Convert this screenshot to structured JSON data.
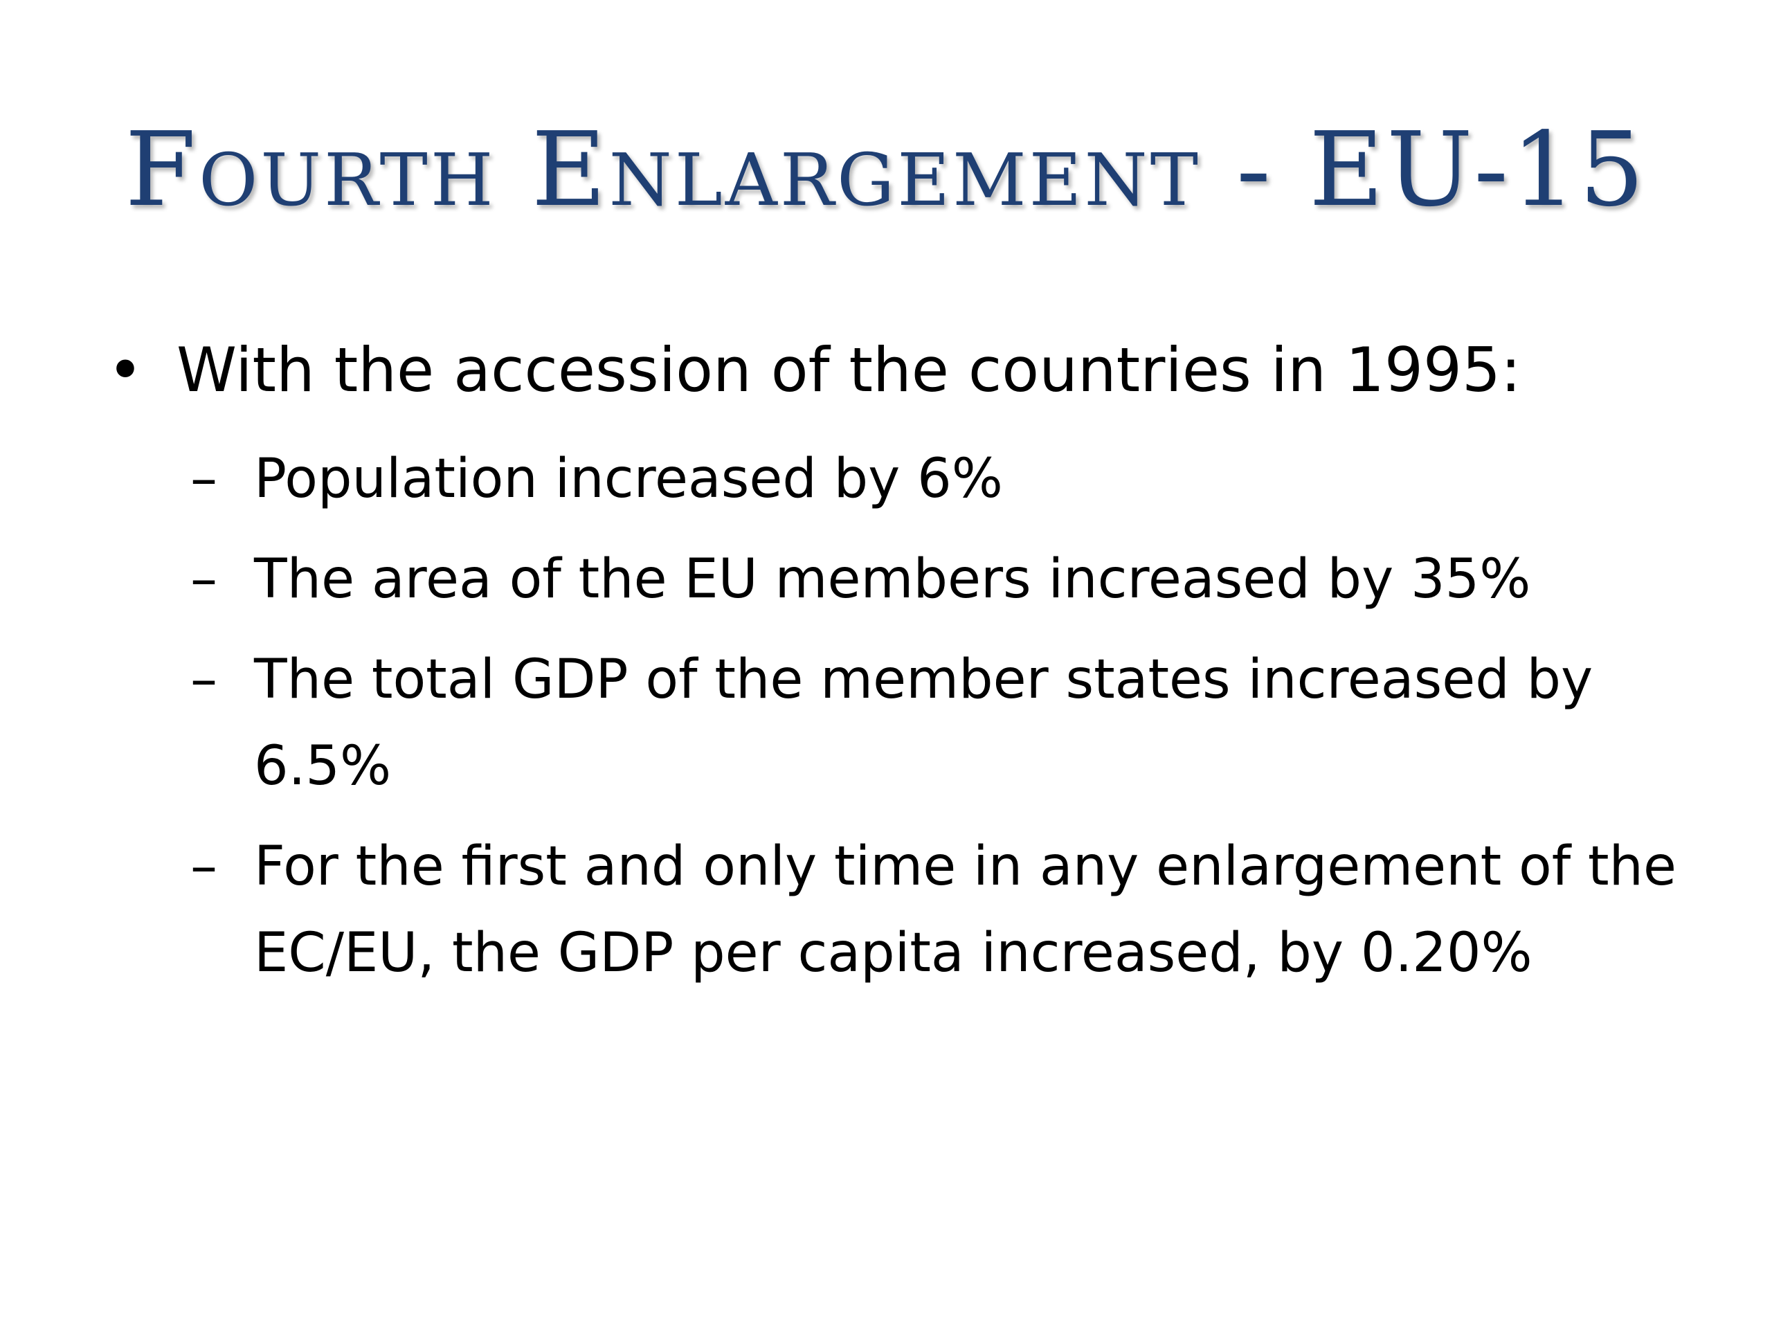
{
  "slide": {
    "title": "Fourth Enlargement - EU-15",
    "bullet": {
      "marker": "•",
      "text": "With the accession of the countries in 1995:"
    },
    "sub_marker": "–",
    "sub_items": [
      "Population increased by 6%",
      "The area of the EU members increased by 35%",
      "The total GDP of the member states increased by 6.5%",
      "For the first and only time in any enlargement of the EC/EU, the GDP per capita increased, by 0.20%"
    ]
  }
}
